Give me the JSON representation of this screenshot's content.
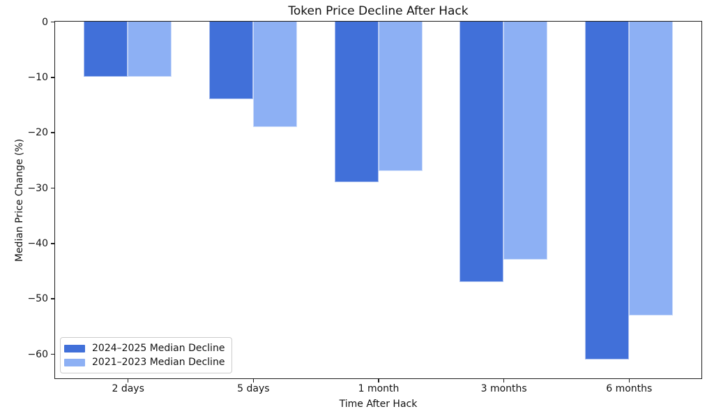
{
  "chart_data": {
    "type": "bar",
    "title": "Token Price Decline After Hack",
    "xlabel": "Time After Hack",
    "ylabel": "Median Price Change (%)",
    "categories": [
      "2 days",
      "5 days",
      "1 month",
      "3 months",
      "6 months"
    ],
    "series": [
      {
        "name": "2024–2025 Median Decline",
        "color": "#4170d9",
        "values": [
          -10,
          -14,
          -29,
          -47,
          -61
        ]
      },
      {
        "name": "2021–2023 Median Decline",
        "color": "#8db0f4",
        "values": [
          -10,
          -19,
          -27,
          -43,
          -53
        ]
      }
    ],
    "ylim": [
      -64.4,
      0
    ],
    "yticks": [
      0,
      -10,
      -20,
      -30,
      -40,
      -50,
      -60
    ],
    "grid": false,
    "legend_position": "lower-left",
    "background": "#ffffff",
    "spine_color": "#1c1c1c"
  }
}
